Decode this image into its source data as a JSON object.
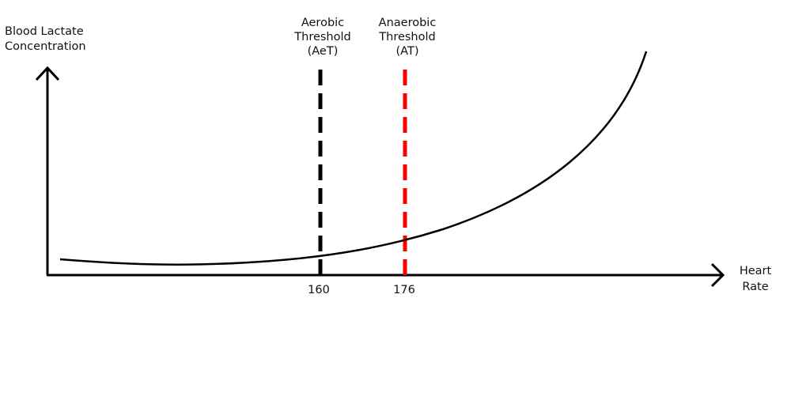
{
  "chart_data": {
    "type": "line",
    "ylabel": [
      "Blood Lactate",
      "Concentration"
    ],
    "xlabel": [
      "Heart",
      "Rate"
    ],
    "xticks": [
      "160",
      "176"
    ],
    "thresholds": [
      {
        "label": [
          "Aerobic",
          "Threshold",
          "(AeT)"
        ],
        "x": "160",
        "color": "#000000",
        "style": "dashed"
      },
      {
        "label": [
          "Anaerobic",
          "Threshold",
          "(AT)"
        ],
        "x": "176",
        "color": "#ff0000",
        "style": "dashed"
      }
    ],
    "curve": {
      "shape": "exponential rise",
      "color": "#000000"
    },
    "grid": false
  }
}
